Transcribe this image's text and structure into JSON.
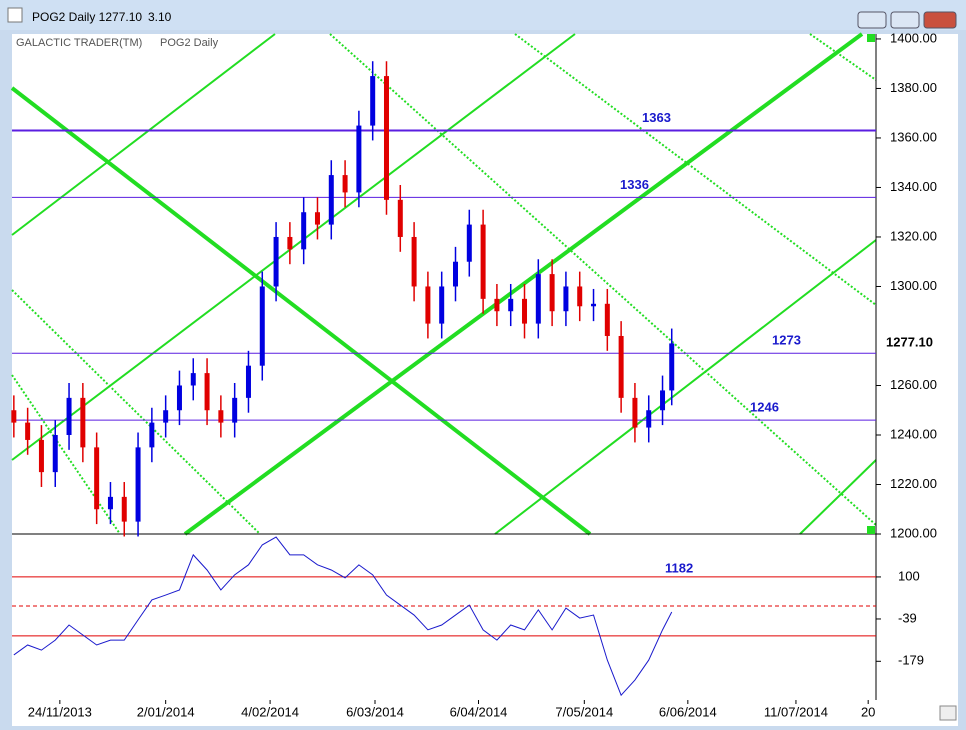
{
  "window": {
    "title": "POG2 Daily 1277.10",
    "change": "3.10"
  },
  "chart_data": [
    {
      "type": "candlestick",
      "watermark": "GALACTIC TRADER(TM)",
      "label": "POG2 Daily",
      "x": [
        0,
        3,
        6,
        9,
        12,
        15,
        18,
        21,
        24,
        27,
        30,
        33,
        36,
        39,
        42,
        45,
        48,
        51,
        54,
        57,
        60,
        63,
        66,
        69,
        72,
        75,
        78,
        81,
        84,
        87,
        90,
        93,
        96,
        99,
        102,
        105,
        108,
        111,
        114,
        117,
        120,
        123,
        126,
        129,
        132,
        135,
        138,
        141,
        143
      ],
      "open": [
        1250,
        1245,
        1238,
        1225,
        1240,
        1255,
        1235,
        1210,
        1215,
        1205,
        1235,
        1245,
        1250,
        1260,
        1265,
        1250,
        1245,
        1255,
        1268,
        1300,
        1320,
        1315,
        1330,
        1325,
        1345,
        1338,
        1365,
        1385,
        1335,
        1320,
        1300,
        1285,
        1300,
        1310,
        1325,
        1295,
        1290,
        1295,
        1285,
        1305,
        1290,
        1300,
        1292,
        1293,
        1280,
        1255,
        1243,
        1250,
        1258
      ],
      "high": [
        1256,
        1251,
        1244,
        1246,
        1261,
        1261,
        1241,
        1221,
        1221,
        1241,
        1251,
        1256,
        1266,
        1271,
        1271,
        1256,
        1261,
        1274,
        1306,
        1326,
        1326,
        1336,
        1336,
        1351,
        1351,
        1371,
        1391,
        1391,
        1341,
        1326,
        1306,
        1306,
        1316,
        1331,
        1331,
        1301,
        1301,
        1301,
        1311,
        1311,
        1306,
        1306,
        1299,
        1299,
        1286,
        1261,
        1256,
        1264,
        1283
      ],
      "low": [
        1239,
        1232,
        1219,
        1219,
        1234,
        1229,
        1204,
        1204,
        1199,
        1199,
        1229,
        1239,
        1244,
        1254,
        1244,
        1239,
        1239,
        1249,
        1262,
        1294,
        1309,
        1309,
        1319,
        1319,
        1332,
        1332,
        1359,
        1329,
        1314,
        1294,
        1279,
        1279,
        1294,
        1304,
        1289,
        1284,
        1284,
        1279,
        1279,
        1284,
        1284,
        1286,
        1286,
        1274,
        1249,
        1237,
        1237,
        1244,
        1252
      ],
      "close": [
        1245,
        1238,
        1225,
        1240,
        1255,
        1235,
        1210,
        1215,
        1205,
        1235,
        1245,
        1250,
        1260,
        1265,
        1250,
        1245,
        1255,
        1268,
        1300,
        1320,
        1315,
        1330,
        1325,
        1345,
        1338,
        1365,
        1385,
        1335,
        1320,
        1300,
        1285,
        1300,
        1310,
        1325,
        1295,
        1290,
        1295,
        1285,
        1305,
        1290,
        1300,
        1292,
        1293,
        1280,
        1255,
        1243,
        1250,
        1258,
        1277
      ],
      "up_color": "#0000e0",
      "down_color": "#e00000",
      "xlim": [
        -0.4,
        187.4
      ],
      "xticks": [
        {
          "value": 10,
          "label": "24/11/2013"
        },
        {
          "value": 33,
          "label": "2/01/2014"
        },
        {
          "value": 55.7,
          "label": "4/02/2014"
        },
        {
          "value": 78.5,
          "label": "6/03/2014"
        },
        {
          "value": 101,
          "label": "6/04/2014"
        },
        {
          "value": 124,
          "label": "7/05/2014"
        },
        {
          "value": 146.5,
          "label": "6/06/2014"
        },
        {
          "value": 170,
          "label": "11/07/2014"
        },
        {
          "value": 185.7,
          "label": "20"
        }
      ],
      "ylim": [
        1200,
        1402
      ],
      "yticks": [
        {
          "value": 1400,
          "label": "1400.00"
        },
        {
          "value": 1380,
          "label": "1380.00"
        },
        {
          "value": 1360,
          "label": "1360.00"
        },
        {
          "value": 1340,
          "label": "1340.00"
        },
        {
          "value": 1320,
          "label": "1320.00"
        },
        {
          "value": 1300,
          "label": "1300.00"
        },
        {
          "value": 1260,
          "label": "1260.00"
        },
        {
          "value": 1240,
          "label": "1240.00"
        },
        {
          "value": 1220,
          "label": "1220.00"
        },
        {
          "value": 1200,
          "label": "1200.00"
        }
      ],
      "last": {
        "value": 1277.1,
        "label": "1277.10"
      },
      "levels": [
        1363,
        1336,
        1273,
        1246
      ],
      "level_color": "#5a1ee0",
      "annotation": "1182"
    },
    {
      "type": "line",
      "series": [
        {
          "color": "#1a1acc",
          "values": [
            -158,
            -125,
            -142,
            -109,
            -59,
            -92,
            -125,
            -109,
            -109,
            -42,
            24,
            40,
            57,
            173,
            123,
            57,
            107,
            140,
            206,
            232,
            173,
            173,
            140,
            123,
            97,
            140,
            107,
            40,
            7,
            -26,
            -75,
            -59,
            -26,
            7,
            -75,
            -109,
            -59,
            -75,
            -9,
            -75,
            -3,
            -36,
            -26,
            -175,
            -291,
            -241,
            -175,
            -75,
            -16
          ]
        }
      ],
      "ylim": [
        -307,
        242
      ],
      "yticks": [
        100,
        -39,
        -179
      ],
      "levels": [
        100,
        -95
      ],
      "dashed_levels": [
        4
      ],
      "level_color": "#e00000"
    }
  ]
}
